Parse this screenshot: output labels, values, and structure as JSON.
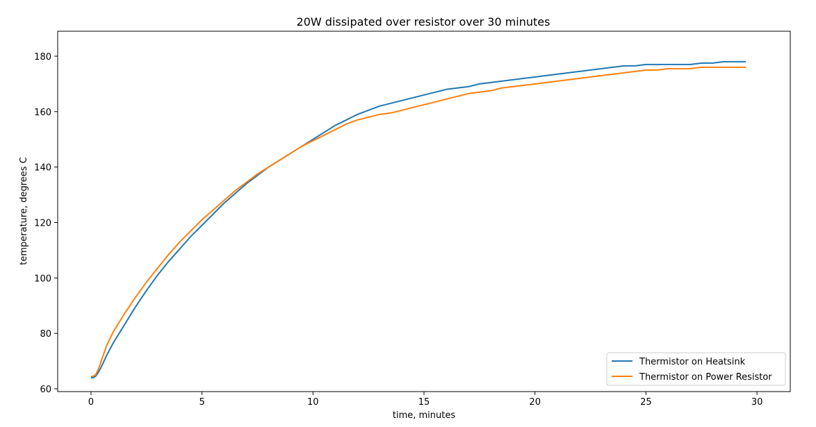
{
  "chart_data": {
    "type": "line",
    "title": "20W dissipated over resistor over 30 minutes",
    "xlabel": "time, minutes",
    "ylabel": "temperature, degrees C",
    "xlim": [
      -1.5,
      31.5
    ],
    "ylim": [
      59,
      189
    ],
    "xticks": [
      0,
      5,
      10,
      15,
      20,
      25,
      30
    ],
    "yticks": [
      60,
      80,
      100,
      120,
      140,
      160,
      180
    ],
    "grid": false,
    "legend": {
      "position": "lower-right"
    },
    "series": [
      {
        "name": "Thermistor on Heatsink",
        "color": "#1f77b4",
        "x": [
          0,
          0.1,
          0.2,
          0.3,
          0.4,
          0.5,
          0.7,
          1.0,
          1.5,
          2.0,
          2.5,
          3.0,
          3.5,
          4.0,
          4.5,
          5.0,
          5.5,
          6.0,
          6.5,
          7.0,
          7.5,
          8.0,
          8.5,
          9.0,
          9.5,
          10.0,
          10.5,
          11.0,
          11.5,
          12.0,
          12.5,
          13.0,
          13.5,
          14.0,
          14.5,
          15.0,
          15.5,
          16.0,
          16.5,
          17.0,
          17.5,
          18.0,
          18.5,
          19.0,
          19.5,
          20.0,
          20.5,
          21.0,
          21.5,
          22.0,
          22.5,
          23.0,
          23.5,
          24.0,
          24.5,
          25.0,
          25.5,
          26.0,
          26.5,
          27.0,
          27.5,
          28.0,
          28.5,
          29.0,
          29.5
        ],
        "y": [
          64,
          64,
          64.5,
          65.5,
          67,
          68.5,
          72,
          76.5,
          83,
          89.5,
          95.5,
          101,
          106,
          110.5,
          115,
          119,
          123,
          127,
          130.5,
          134,
          137,
          140,
          142.5,
          145,
          147.5,
          150,
          152.5,
          155,
          157,
          159,
          160.5,
          162,
          163,
          164,
          165,
          166,
          167,
          168,
          168.5,
          169,
          170,
          170.5,
          171,
          171.5,
          172,
          172.5,
          173,
          173.5,
          174,
          174.5,
          175,
          175.5,
          176,
          176.5,
          176.5,
          177,
          177,
          177,
          177,
          177,
          177.5,
          177.5,
          178,
          178,
          178
        ]
      },
      {
        "name": "Thermistor on Power Resistor",
        "color": "#ff7f0e",
        "x": [
          0,
          0.1,
          0.2,
          0.3,
          0.4,
          0.5,
          0.7,
          1.0,
          1.5,
          2.0,
          2.5,
          3.0,
          3.5,
          4.0,
          4.5,
          5.0,
          5.5,
          6.0,
          6.5,
          7.0,
          7.5,
          8.0,
          8.5,
          9.0,
          9.5,
          10.0,
          10.5,
          11.0,
          11.5,
          12.0,
          12.5,
          13.0,
          13.5,
          14.0,
          14.5,
          15.0,
          15.5,
          16.0,
          16.5,
          17.0,
          17.5,
          18.0,
          18.5,
          19.0,
          19.5,
          20.0,
          20.5,
          21.0,
          21.5,
          22.0,
          22.5,
          23.0,
          23.5,
          24.0,
          24.5,
          25.0,
          25.5,
          26.0,
          26.5,
          27.0,
          27.5,
          28.0,
          28.5,
          29.0,
          29.5
        ],
        "y": [
          64.5,
          64.5,
          65,
          66.5,
          68.5,
          71,
          75.5,
          80.5,
          87,
          93,
          98.5,
          103.5,
          108.5,
          113,
          117,
          121,
          124.5,
          128,
          131.5,
          134.5,
          137.5,
          140,
          142.5,
          145,
          147.5,
          149.5,
          151.5,
          153.5,
          155.5,
          157,
          158,
          159,
          159.5,
          160.5,
          161.5,
          162.5,
          163.5,
          164.5,
          165.5,
          166.5,
          167,
          167.5,
          168.5,
          169,
          169.5,
          170,
          170.5,
          171,
          171.5,
          172,
          172.5,
          173,
          173.5,
          174,
          174.5,
          175,
          175,
          175.5,
          175.5,
          175.5,
          176,
          176,
          176,
          176,
          176
        ]
      }
    ]
  }
}
